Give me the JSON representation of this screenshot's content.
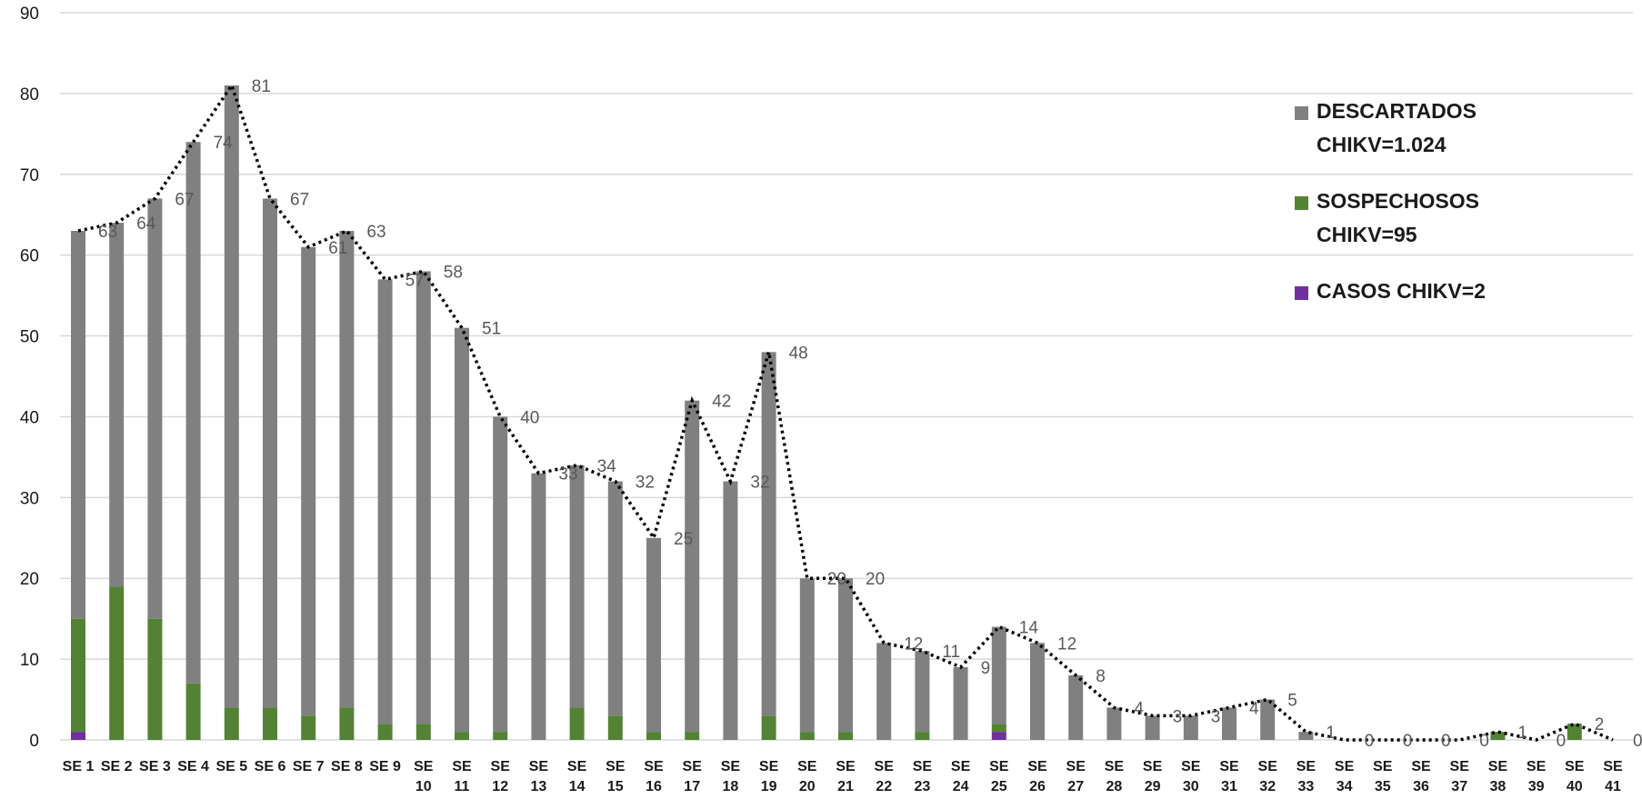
{
  "chart_data": {
    "type": "bar",
    "stacked": true,
    "ylim": [
      0,
      90
    ],
    "yticks": [
      0,
      10,
      20,
      30,
      40,
      50,
      60,
      70,
      80,
      90
    ],
    "grid": true,
    "legend_position": "top-right",
    "categories": [
      "SE 1",
      "SE 2",
      "SE 3",
      "SE 4",
      "SE 5",
      "SE 6",
      "SE 7",
      "SE 8",
      "SE 9",
      "SE 10",
      "SE 11",
      "SE 12",
      "SE 13",
      "SE 14",
      "SE 15",
      "SE 16",
      "SE 17",
      "SE 18",
      "SE 19",
      "SE 20",
      "SE 21",
      "SE 22",
      "SE 23",
      "SE 24",
      "SE 25",
      "SE 26",
      "SE 27",
      "SE 28",
      "SE 29",
      "SE 30",
      "SE 31",
      "SE 32",
      "SE 33",
      "SE 34",
      "SE 35",
      "SE 36",
      "SE 37",
      "SE 38",
      "SE 39",
      "SE 40",
      "SE 41"
    ],
    "series": [
      {
        "name": "CASOS CHIKV=2",
        "color": "#7030a0",
        "values": [
          1,
          0,
          0,
          0,
          0,
          0,
          0,
          0,
          0,
          0,
          0,
          0,
          0,
          0,
          0,
          0,
          0,
          0,
          0,
          0,
          0,
          0,
          0,
          0,
          1,
          0,
          0,
          0,
          0,
          0,
          0,
          0,
          0,
          0,
          0,
          0,
          0,
          0,
          0,
          0,
          0
        ]
      },
      {
        "name": "SOSPECHOSOS CHIKV=95",
        "color": "#548235",
        "values": [
          14,
          19,
          15,
          7,
          4,
          4,
          3,
          4,
          2,
          2,
          1,
          1,
          0,
          4,
          3,
          1,
          1,
          0,
          3,
          1,
          1,
          0,
          1,
          0,
          1,
          0,
          0,
          0,
          0,
          0,
          0,
          0,
          0,
          0,
          0,
          0,
          0,
          1,
          0,
          2,
          0
        ]
      },
      {
        "name": "DESCARTADOS CHIKV=1.024",
        "color": "#808080",
        "values": [
          48,
          45,
          52,
          67,
          77,
          63,
          58,
          59,
          55,
          56,
          50,
          39,
          33,
          30,
          29,
          24,
          41,
          32,
          45,
          19,
          19,
          12,
          10,
          9,
          12,
          12,
          8,
          4,
          3,
          3,
          4,
          5,
          1,
          0,
          0,
          0,
          0,
          0,
          0,
          0,
          0
        ]
      }
    ],
    "totals": {
      "name": "",
      "color": "#000000",
      "style": "dotted",
      "values": [
        63,
        64,
        67,
        74,
        81,
        67,
        61,
        63,
        57,
        58,
        51,
        40,
        33,
        34,
        32,
        25,
        42,
        32,
        48,
        20,
        20,
        12,
        11,
        9,
        14,
        12,
        8,
        4,
        3,
        3,
        4,
        5,
        1,
        0,
        0,
        0,
        0,
        1,
        0,
        2,
        0
      ]
    }
  }
}
